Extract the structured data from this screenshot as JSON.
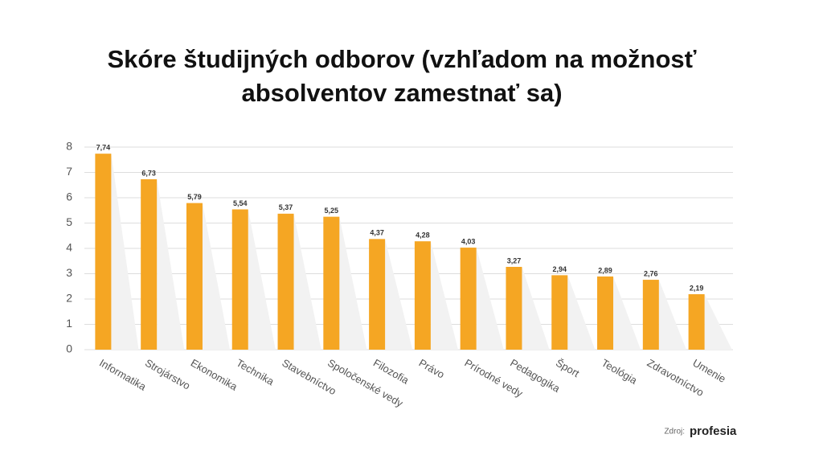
{
  "chart_data": {
    "type": "bar",
    "title": [
      "Skóre študijných odborov (vzhľadom na možnosť",
      "absolventov zamestnať sa)"
    ],
    "categories": [
      "Informatika",
      "Strojárstvo",
      "Ekonomika",
      "Technika",
      "Stavebníctvo",
      "Spoločenské vedy",
      "Filozofia",
      "Právo",
      "Prírodné vedy",
      "Pedagogika",
      "Šport",
      "Teológia",
      "Zdravotníctvo",
      "Umenie"
    ],
    "values": [
      7.74,
      6.73,
      5.79,
      5.54,
      5.37,
      5.25,
      4.37,
      4.28,
      4.03,
      3.27,
      2.94,
      2.89,
      2.76,
      2.19
    ],
    "value_labels": [
      "7,74",
      "6,73",
      "5,79",
      "5,54",
      "5,37",
      "5,25",
      "4,37",
      "4,28",
      "4,03",
      "3,27",
      "2,94",
      "2,89",
      "2,76",
      "2,19"
    ],
    "color": "#f5a623",
    "ylim": [
      0,
      8
    ],
    "yticks": [
      0,
      1,
      2,
      3,
      4,
      5,
      6,
      7,
      8
    ],
    "grid": true,
    "source_label": "Zdroj:",
    "source": "profesia"
  }
}
